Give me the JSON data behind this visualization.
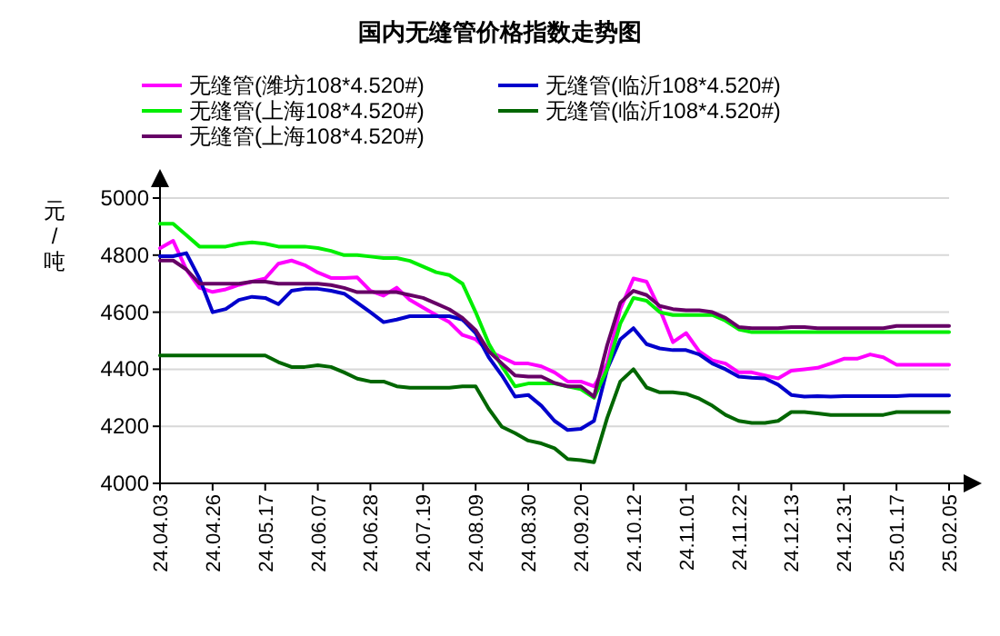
{
  "chart_data": {
    "type": "line",
    "title": "国内无缝管价格指数走势图",
    "ylabel": "元/吨",
    "categories": [
      "24.04.03",
      null,
      null,
      null,
      "24.04.26",
      null,
      null,
      null,
      "24.05.17",
      null,
      null,
      null,
      "24.06.07",
      null,
      null,
      null,
      "24.06.28",
      null,
      null,
      null,
      "24.07.19",
      null,
      null,
      null,
      "24.08.09",
      null,
      null,
      null,
      "24.08.30",
      null,
      null,
      null,
      "24.09.20",
      null,
      null,
      null,
      "24.10.12",
      null,
      null,
      null,
      "24.11.01",
      null,
      null,
      null,
      "24.11.22",
      null,
      null,
      null,
      "24.12.13",
      null,
      null,
      null,
      "24.12.31",
      null,
      null,
      null,
      "25.01.17",
      null,
      null,
      null,
      "25.02.05"
    ],
    "series": [
      {
        "name": "无缝管(潍坊108*4.520#)",
        "color": "#ff00ff",
        "values": [
          4824,
          4850,
          4750,
          4686,
          4671,
          4680,
          4696,
          4707,
          4718,
          4770,
          4781,
          4765,
          4739,
          4720,
          4720,
          4722,
          4675,
          4658,
          4686,
          4643,
          4616,
          4590,
          4565,
          4520,
          4505,
          4463,
          4442,
          4420,
          4420,
          4410,
          4389,
          4357,
          4357,
          4340,
          4420,
          4611,
          4718,
          4707,
          4611,
          4495,
          4527,
          4463,
          4431,
          4420,
          4389,
          4389,
          4378,
          4368,
          4395,
          4400,
          4405,
          4420,
          4437,
          4437,
          4452,
          4442,
          4416,
          4416,
          4416,
          4416,
          4416
        ]
      },
      {
        "name": "无缝管(临沂108*4.520#)",
        "color": "#0000cc",
        "values": [
          4796,
          4796,
          4807,
          4718,
          4600,
          4611,
          4643,
          4654,
          4650,
          4628,
          4675,
          4682,
          4682,
          4675,
          4665,
          4633,
          4600,
          4565,
          4574,
          4586,
          4586,
          4586,
          4586,
          4574,
          4527,
          4442,
          4378,
          4304,
          4310,
          4272,
          4219,
          4187,
          4191,
          4219,
          4400,
          4505,
          4544,
          4488,
          4473,
          4467,
          4467,
          4452,
          4420,
          4400,
          4374,
          4370,
          4368,
          4346,
          4310,
          4304,
          4306,
          4304,
          4306,
          4306,
          4306,
          4306,
          4306,
          4308,
          4308,
          4308,
          4308
        ]
      },
      {
        "name": "无缝管(上海108*4.520#)",
        "color": "#00ee00",
        "values": [
          4910,
          4910,
          4870,
          4830,
          4830,
          4830,
          4840,
          4845,
          4840,
          4830,
          4830,
          4830,
          4825,
          4815,
          4800,
          4800,
          4795,
          4790,
          4790,
          4780,
          4760,
          4740,
          4730,
          4700,
          4600,
          4490,
          4410,
          4340,
          4350,
          4350,
          4350,
          4340,
          4330,
          4300,
          4400,
          4560,
          4650,
          4640,
          4600,
          4590,
          4590,
          4590,
          4590,
          4570,
          4540,
          4530,
          4530,
          4530,
          4530,
          4530,
          4530,
          4530,
          4530,
          4530,
          4530,
          4530,
          4530,
          4530,
          4530,
          4530,
          4530
        ]
      },
      {
        "name": "无缝管(临沂108*4.520#)",
        "color": "#006600",
        "values": [
          4448,
          4448,
          4448,
          4448,
          4448,
          4448,
          4448,
          4448,
          4448,
          4425,
          4408,
          4408,
          4414,
          4408,
          4389,
          4367,
          4357,
          4357,
          4340,
          4335,
          4335,
          4335,
          4335,
          4340,
          4340,
          4261,
          4198,
          4176,
          4150,
          4140,
          4123,
          4085,
          4081,
          4074,
          4229,
          4357,
          4400,
          4336,
          4319,
          4319,
          4314,
          4297,
          4272,
          4240,
          4219,
          4212,
          4212,
          4219,
          4250,
          4250,
          4245,
          4240,
          4240,
          4240,
          4240,
          4240,
          4250,
          4250,
          4250,
          4250,
          4250
        ]
      },
      {
        "name": "无缝管(上海108*4.520#)",
        "color": "#660066",
        "values": [
          4781,
          4781,
          4750,
          4700,
          4700,
          4700,
          4700,
          4707,
          4707,
          4700,
          4700,
          4700,
          4700,
          4695,
          4685,
          4670,
          4670,
          4670,
          4670,
          4660,
          4650,
          4630,
          4610,
          4580,
          4537,
          4463,
          4420,
          4378,
          4374,
          4374,
          4352,
          4340,
          4340,
          4304,
          4484,
          4633,
          4675,
          4660,
          4622,
          4611,
          4607,
          4607,
          4600,
          4580,
          4548,
          4544,
          4544,
          4544,
          4548,
          4548,
          4544,
          4544,
          4544,
          4544,
          4544,
          4544,
          4552,
          4552,
          4552,
          4552,
          4552
        ]
      }
    ],
    "ylim": [
      4000,
      5000
    ],
    "yticks": [
      4000,
      4200,
      4400,
      4600,
      4800,
      5000
    ],
    "grid": "y",
    "legend": "top"
  }
}
